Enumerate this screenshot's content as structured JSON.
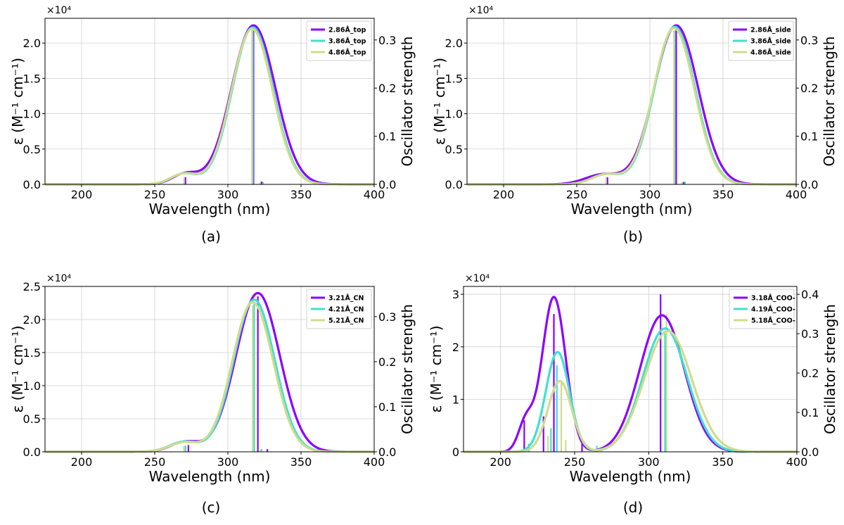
{
  "figure": {
    "colors": {
      "series1": "#8b00ff",
      "series2": "#40e0d0",
      "series3": "#cfdc8c",
      "grid": "#cfcfcf",
      "axis": "#000000"
    },
    "xlabel": "Wavelength (nm)",
    "ylabel": "ε (M⁻¹ cm⁻¹)",
    "y2label": "Oscillator strength",
    "exponent_label": "×10⁴"
  },
  "chart_data": [
    {
      "type": "line",
      "caption": "(a)",
      "xlim": [
        175,
        400
      ],
      "ylim": [
        0,
        2.35
      ],
      "y2lim": [
        0,
        0.345
      ],
      "xticks": [
        200,
        250,
        300,
        350,
        400
      ],
      "yticks": [
        0.0,
        0.5,
        1.0,
        1.5,
        2.0
      ],
      "yticklabels": [
        "0.0",
        "0.5",
        "1.0",
        "1.5",
        "2.0"
      ],
      "y2ticks": [
        0.0,
        0.1,
        0.2,
        0.3
      ],
      "y2ticklabels": [
        "0.0",
        "0.1",
        "0.2",
        "0.3"
      ],
      "grid": true,
      "legend_position": "top-right",
      "series": [
        {
          "name": "2.86Å_top",
          "peaks": [
            [
              317.5,
              2.25,
              15
            ],
            [
              271,
              0.15,
              9
            ]
          ],
          "sticks": [
            [
              317.5,
              0.33
            ],
            [
              271,
              0.015
            ],
            [
              323,
              0.006
            ]
          ]
        },
        {
          "name": "3.86Å_top",
          "peaks": [
            [
              317,
              2.22,
              14
            ],
            [
              270,
              0.15,
              9
            ]
          ],
          "sticks": [
            [
              317,
              0.32
            ],
            [
              270,
              0.014
            ],
            [
              324,
              0.005
            ]
          ]
        },
        {
          "name": "4.86Å_top",
          "peaks": [
            [
              316.5,
              2.2,
              14
            ],
            [
              270,
              0.15,
              9
            ]
          ],
          "sticks": [
            [
              316.5,
              0.32
            ],
            [
              270,
              0.014
            ],
            [
              322,
              0.005
            ]
          ]
        }
      ]
    },
    {
      "type": "line",
      "caption": "(b)",
      "xlim": [
        175,
        400
      ],
      "ylim": [
        0,
        2.35
      ],
      "y2lim": [
        0,
        0.345
      ],
      "xticks": [
        200,
        250,
        300,
        350,
        400
      ],
      "yticks": [
        0.0,
        0.5,
        1.0,
        1.5,
        2.0
      ],
      "yticklabels": [
        "0.0",
        "0.5",
        "1.0",
        "1.5",
        "2.0"
      ],
      "y2ticks": [
        0.0,
        0.1,
        0.2,
        0.3
      ],
      "y2ticklabels": [
        "0.0",
        "0.1",
        "0.2",
        "0.3"
      ],
      "grid": true,
      "legend_position": "top-right",
      "series": [
        {
          "name": "2.86Å_side",
          "peaks": [
            [
              318,
              2.25,
              15
            ],
            [
              268,
              0.14,
              12
            ]
          ],
          "sticks": [
            [
              318,
              0.33
            ],
            [
              271,
              0.015
            ],
            [
              323,
              0.005
            ]
          ]
        },
        {
          "name": "3.86Å_side",
          "peaks": [
            [
              317,
              2.23,
              14
            ],
            [
              270,
              0.14,
              10
            ]
          ],
          "sticks": [
            [
              317,
              0.32
            ],
            [
              270,
              0.014
            ],
            [
              324,
              0.006
            ]
          ]
        },
        {
          "name": "4.86Å_side",
          "peaks": [
            [
              316.5,
              2.21,
              14
            ],
            [
              270,
              0.14,
              10
            ]
          ],
          "sticks": [
            [
              316.5,
              0.32
            ],
            [
              270,
              0.014
            ],
            [
              322,
              0.005
            ]
          ]
        }
      ]
    },
    {
      "type": "line",
      "caption": "(c)",
      "xlim": [
        175,
        400
      ],
      "ylim": [
        0,
        2.5
      ],
      "y2lim": [
        0,
        0.367
      ],
      "xticks": [
        200,
        250,
        300,
        350,
        400
      ],
      "yticks": [
        0.0,
        0.5,
        1.0,
        1.5,
        2.0,
        2.5
      ],
      "yticklabels": [
        "0.0",
        "0.5",
        "1.0",
        "1.5",
        "2.0",
        "2.5"
      ],
      "y2ticks": [
        0.0,
        0.1,
        0.2,
        0.3
      ],
      "y2ticklabels": [
        "0.0",
        "0.1",
        "0.2",
        "0.3"
      ],
      "grid": true,
      "legend_position": "top-right",
      "series": [
        {
          "name": "3.21Å_CN",
          "peaks": [
            [
              320.5,
              2.4,
              15
            ],
            [
              271,
              0.15,
              10
            ]
          ],
          "sticks": [
            [
              320.5,
              0.345
            ],
            [
              273,
              0.015
            ],
            [
              327,
              0.006
            ]
          ]
        },
        {
          "name": "4.21Å_CN",
          "peaks": [
            [
              318,
              2.3,
              14
            ],
            [
              270,
              0.15,
              10
            ]
          ],
          "sticks": [
            [
              318,
              0.33
            ],
            [
              271,
              0.014
            ],
            [
              323,
              0.006
            ]
          ]
        },
        {
          "name": "5.21Å_CN",
          "peaks": [
            [
              317,
              2.26,
              14
            ],
            [
              270,
              0.14,
              10
            ]
          ],
          "sticks": [
            [
              317,
              0.325
            ],
            [
              270,
              0.013
            ],
            [
              322,
              0.005
            ]
          ]
        }
      ]
    },
    {
      "type": "line",
      "caption": "(d)",
      "xlim": [
        175,
        400
      ],
      "ylim": [
        0,
        3.15
      ],
      "y2lim": [
        0,
        0.42
      ],
      "xticks": [
        200,
        250,
        300,
        350,
        400
      ],
      "yticks": [
        0,
        1,
        2,
        3
      ],
      "yticklabels": [
        "0",
        "1",
        "2",
        "3"
      ],
      "y2ticks": [
        0.0,
        0.1,
        0.2,
        0.3,
        0.4
      ],
      "y2ticklabels": [
        "0.0",
        "0.1",
        "0.2",
        "0.3",
        "0.4"
      ],
      "grid": true,
      "legend_position": "top-right",
      "series": [
        {
          "name": "3.18Å_COO-",
          "peaks": [
            [
              236,
              2.95,
              8
            ],
            [
              217,
              0.55,
              5
            ],
            [
              309,
              2.6,
              15
            ]
          ],
          "sticks": [
            [
              308,
              0.4
            ],
            [
              236,
              0.35
            ],
            [
              229,
              0.09
            ],
            [
              216,
              0.08
            ],
            [
              255,
              0.02
            ],
            [
              219,
              0.02
            ]
          ]
        },
        {
          "name": "4.19Å_COO-",
          "peaks": [
            [
              238.5,
              1.9,
              8
            ],
            [
              311,
              2.35,
              15
            ]
          ],
          "sticks": [
            [
              311,
              0.3
            ],
            [
              238,
              0.22
            ],
            [
              234,
              0.06
            ],
            [
              219,
              0.02
            ],
            [
              265,
              0.015
            ]
          ]
        },
        {
          "name": "5.18Å_COO-",
          "peaks": [
            [
              240,
              1.35,
              8
            ],
            [
              313,
              2.3,
              16
            ]
          ],
          "sticks": [
            [
              312,
              0.35
            ],
            [
              241,
              0.18
            ],
            [
              232,
              0.04
            ],
            [
              244,
              0.03
            ],
            [
              268,
              0.01
            ]
          ]
        }
      ]
    }
  ]
}
